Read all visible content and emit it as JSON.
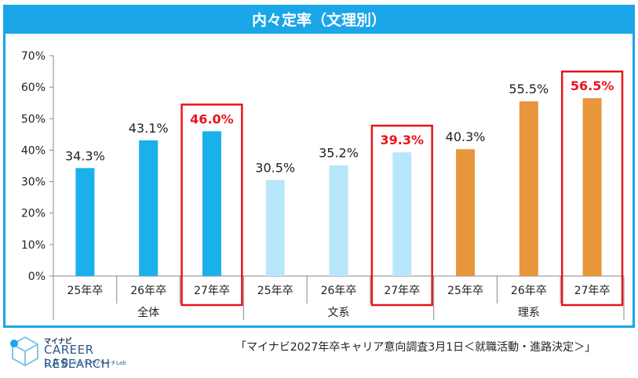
{
  "header": {
    "title": "内々定率（文理別）"
  },
  "chart_data": {
    "type": "bar",
    "title": "内々定率（文理別）",
    "yticks": [
      "0%",
      "10%",
      "20%",
      "30%",
      "40%",
      "50%",
      "60%",
      "70%"
    ],
    "ylim": [
      0,
      70
    ],
    "groups": [
      {
        "name": "全体",
        "color": "#1ab0ec",
        "bars": [
          {
            "category": "25年卒",
            "value": 34.3,
            "label": "34.3%",
            "highlight": false
          },
          {
            "category": "26年卒",
            "value": 43.1,
            "label": "43.1%",
            "highlight": false
          },
          {
            "category": "27年卒",
            "value": 46.0,
            "label": "46.0%",
            "highlight": true
          }
        ]
      },
      {
        "name": "文系",
        "color": "#b8e6fa",
        "bars": [
          {
            "category": "25年卒",
            "value": 30.5,
            "label": "30.5%",
            "highlight": false
          },
          {
            "category": "26年卒",
            "value": 35.2,
            "label": "35.2%",
            "highlight": false
          },
          {
            "category": "27年卒",
            "value": 39.3,
            "label": "39.3%",
            "highlight": true
          }
        ]
      },
      {
        "name": "理系",
        "color": "#e8963c",
        "bars": [
          {
            "category": "25年卒",
            "value": 40.3,
            "label": "40.3%",
            "highlight": false
          },
          {
            "category": "26年卒",
            "value": 55.5,
            "label": "55.5%",
            "highlight": false
          },
          {
            "category": "27年卒",
            "value": 56.5,
            "label": "56.5%",
            "highlight": true
          }
        ]
      }
    ],
    "highlight_color": "#e8141c",
    "grid": false
  },
  "logo": {
    "brand": "マイナビ",
    "main": "CAREER RESEARCH",
    "lab": "LAB",
    "jp": "キャリアリサーチLab"
  },
  "footer": {
    "source": "「マイナビ2027年卒キャリア意向調査3月1日＜就職活動・進路決定＞」"
  }
}
